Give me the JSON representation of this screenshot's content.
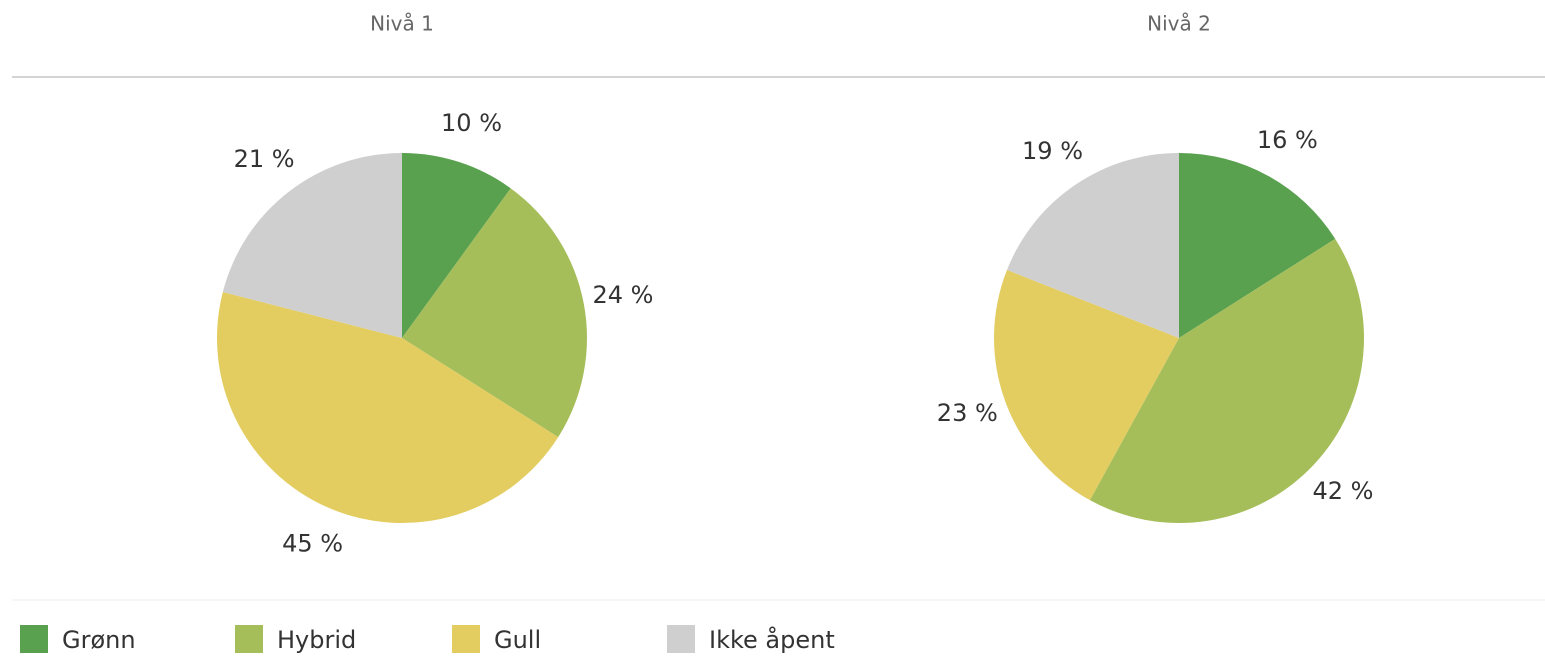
{
  "chart_data": [
    {
      "type": "pie",
      "title": "Nivå 1",
      "categories": [
        "Grønn",
        "Hybrid",
        "Gull",
        "Ikke åpent"
      ],
      "values": [
        10,
        24,
        45,
        21
      ],
      "value_labels": [
        "10 %",
        "24 %",
        "45 %",
        "21 %"
      ],
      "colors": [
        "#59a14f",
        "#a6be5a",
        "#e3cd61",
        "#cfcfcf"
      ]
    },
    {
      "type": "pie",
      "title": "Nivå 2",
      "categories": [
        "Grønn",
        "Hybrid",
        "Gull",
        "Ikke åpent"
      ],
      "values": [
        16,
        42,
        23,
        19
      ],
      "value_labels": [
        "16 %",
        "42 %",
        "23 %",
        "19 %"
      ],
      "colors": [
        "#59a14f",
        "#a6be5a",
        "#e3cd61",
        "#cfcfcf"
      ]
    }
  ]
}
